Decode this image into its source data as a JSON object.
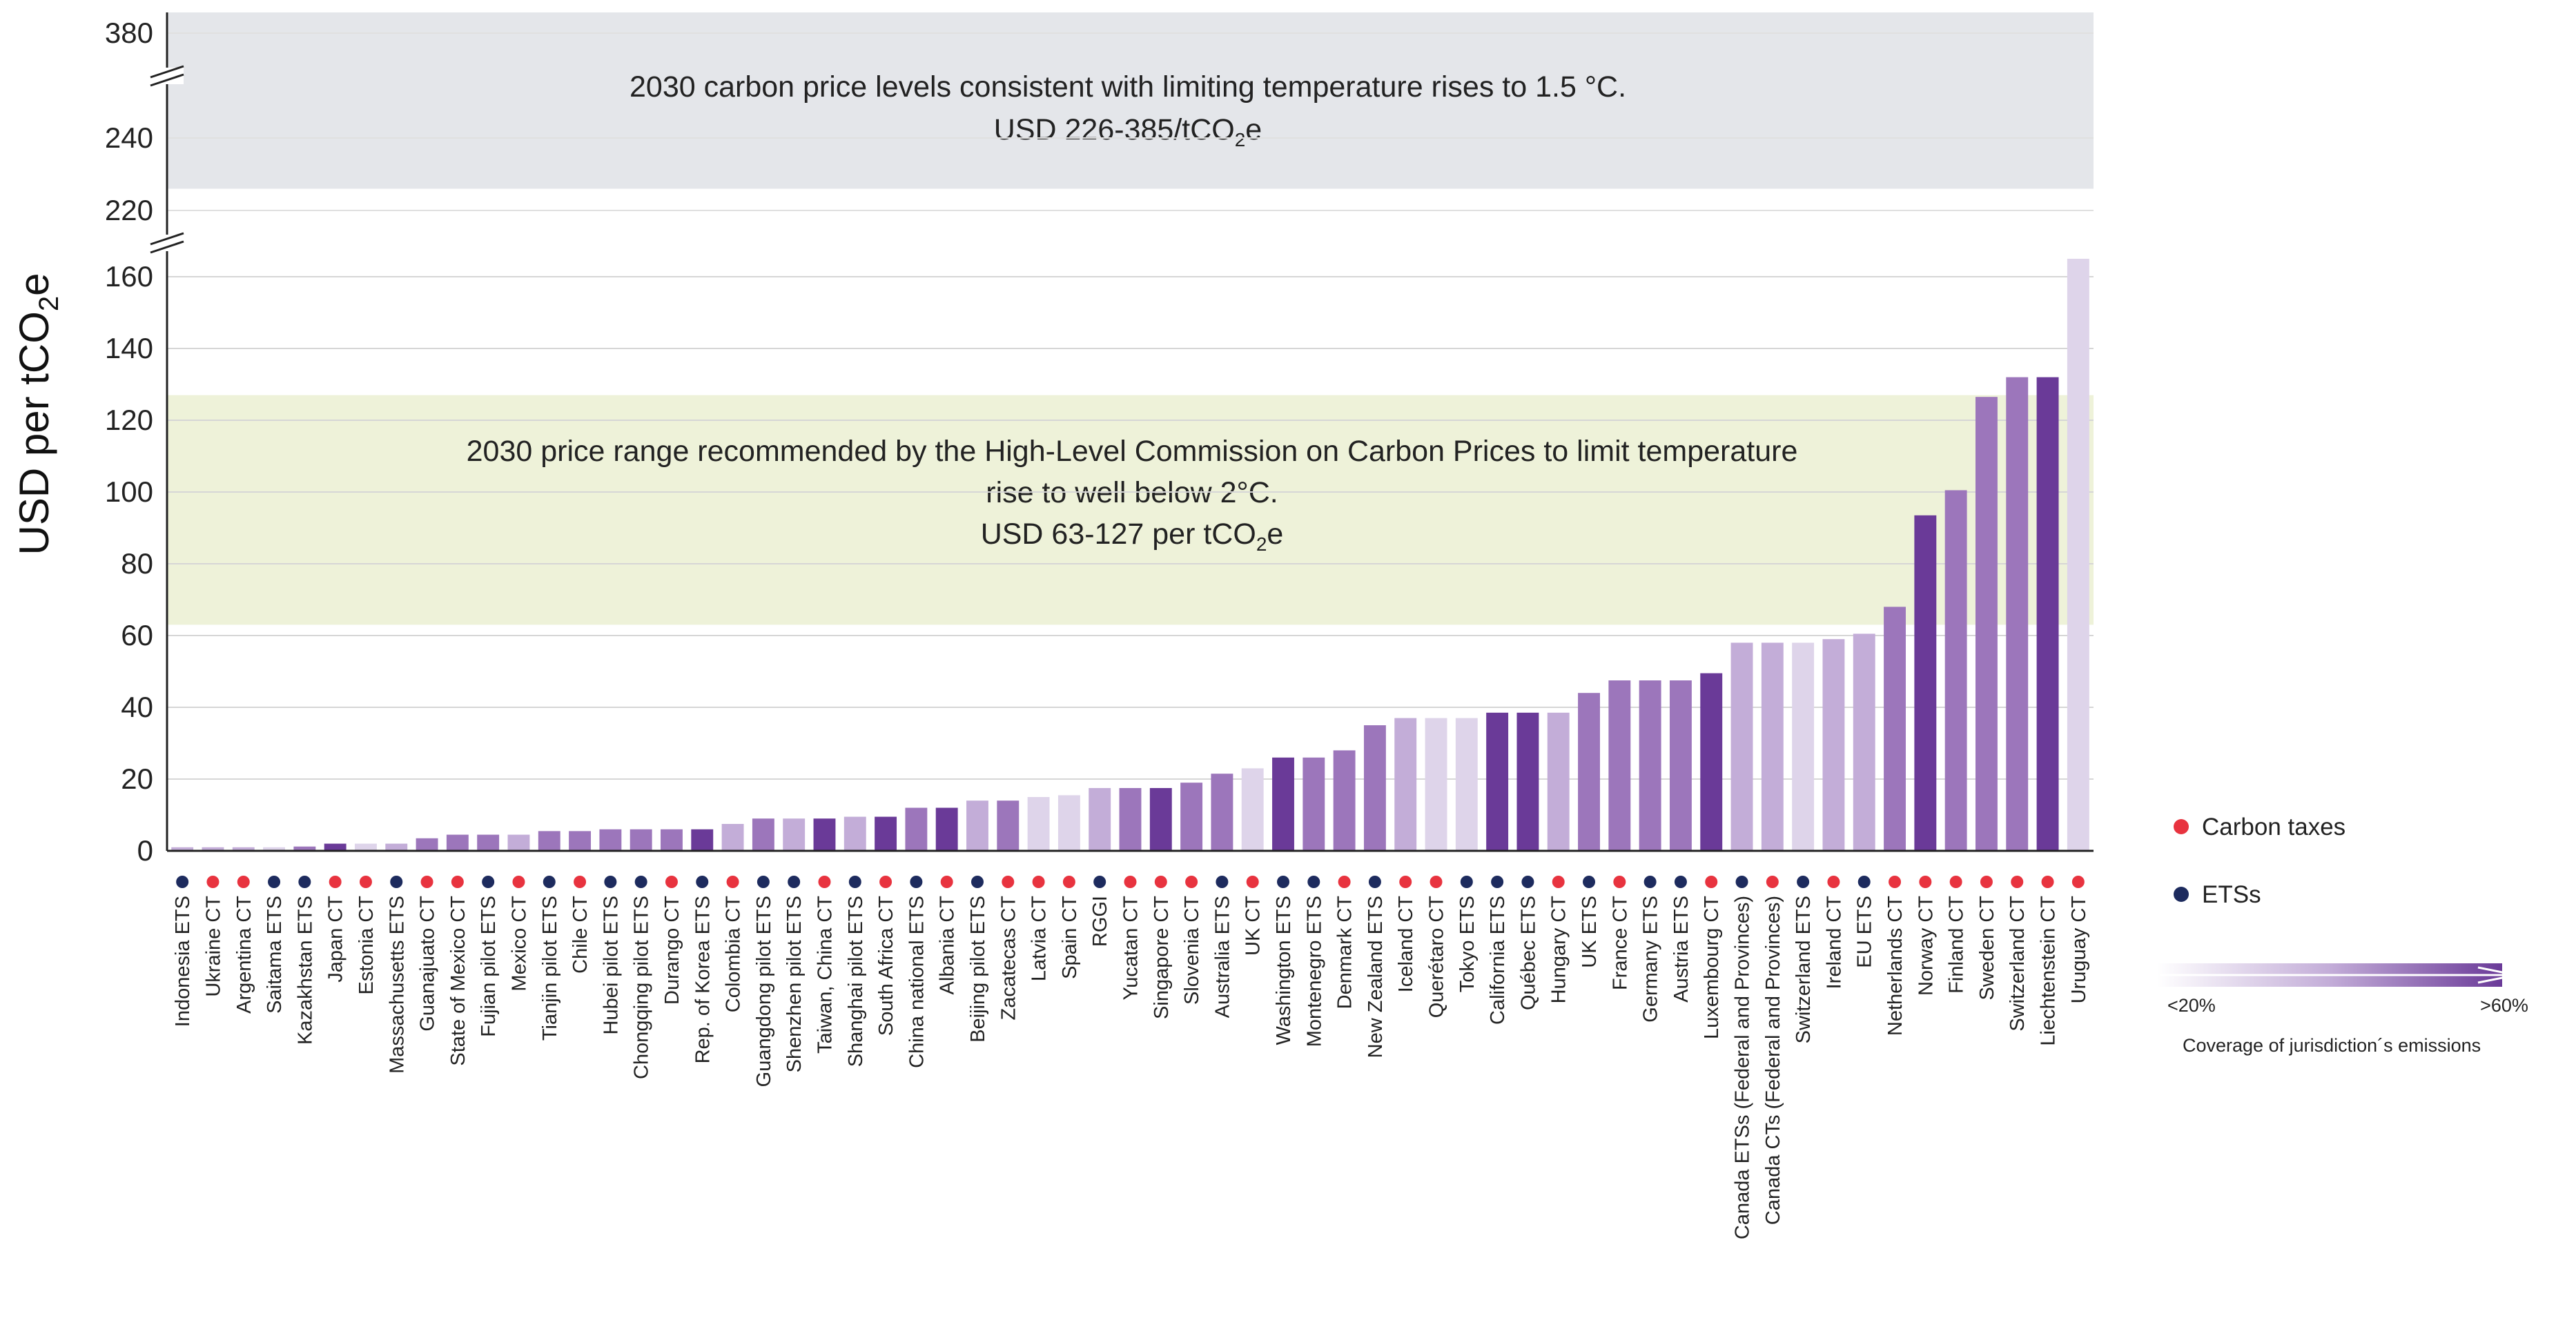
{
  "chart_data": {
    "type": "bar",
    "ylabel": "USD per tCO₂e",
    "y_ticks_lower": [
      0,
      20,
      40,
      60,
      80,
      100,
      120,
      140,
      160
    ],
    "y_ticks_upper": [
      220,
      240,
      380
    ],
    "ylim": [
      0,
      165
    ],
    "bands": [
      {
        "name": "band-1-5c",
        "lines": [
          "2030 carbon price levels consistent with limiting temperature rises to 1.5 °C.",
          "USD 226-385/tCO₂e"
        ],
        "range": [
          226,
          385
        ],
        "color": "#e4e6ea"
      },
      {
        "name": "band-2c",
        "lines": [
          "2030 price range recommended by the High-Level Commission on Carbon Prices to limit temperature",
          "rise to well below 2°C.",
          "USD 63-127 per tCO₂e"
        ],
        "range": [
          63,
          127
        ],
        "color": "#eef2d9"
      }
    ],
    "legend": {
      "types": [
        {
          "key": "CT",
          "label": "Carbon taxes",
          "color": "#e8333f"
        },
        {
          "key": "ETS",
          "label": "ETSs",
          "color": "#1d2b5e"
        }
      ],
      "coverage_low": "<20%",
      "coverage_high": ">60%",
      "coverage_title": "Coverage of jurisdiction´s emissions"
    },
    "coverage_colors": [
      "#ded4ea",
      "#c3add8",
      "#9c76bb",
      "#6a3a98"
    ],
    "bars": [
      {
        "label": "Indonesia ETS",
        "value": 1,
        "type": "ETS",
        "cov": 1
      },
      {
        "label": "Ukraine CT",
        "value": 1,
        "type": "CT",
        "cov": 1
      },
      {
        "label": "Argentina CT",
        "value": 1,
        "type": "CT",
        "cov": 1
      },
      {
        "label": "Saitama ETS",
        "value": 1,
        "type": "ETS",
        "cov": 0
      },
      {
        "label": "Kazakhstan ETS",
        "value": 1.2,
        "type": "ETS",
        "cov": 2
      },
      {
        "label": "Japan CT",
        "value": 2,
        "type": "CT",
        "cov": 3
      },
      {
        "label": "Estonia CT",
        "value": 2,
        "type": "CT",
        "cov": 0
      },
      {
        "label": "Massachusetts ETS",
        "value": 2,
        "type": "ETS",
        "cov": 1
      },
      {
        "label": "Guanajuato CT",
        "value": 3.5,
        "type": "CT",
        "cov": 2
      },
      {
        "label": "State of Mexico CT",
        "value": 4.5,
        "type": "CT",
        "cov": 2
      },
      {
        "label": "Fujian pilot ETS",
        "value": 4.5,
        "type": "ETS",
        "cov": 2
      },
      {
        "label": "Mexico CT",
        "value": 4.5,
        "type": "CT",
        "cov": 1
      },
      {
        "label": "Tianjin pilot ETS",
        "value": 5.5,
        "type": "ETS",
        "cov": 2
      },
      {
        "label": "Chile CT",
        "value": 5.5,
        "type": "CT",
        "cov": 2
      },
      {
        "label": "Hubei pilot ETS",
        "value": 6,
        "type": "ETS",
        "cov": 2
      },
      {
        "label": "Chongqing pilot ETS",
        "value": 6,
        "type": "ETS",
        "cov": 2
      },
      {
        "label": "Durango CT",
        "value": 6,
        "type": "CT",
        "cov": 2
      },
      {
        "label": "Rep. of Korea ETS",
        "value": 6,
        "type": "ETS",
        "cov": 3
      },
      {
        "label": "Colombia CT",
        "value": 7.5,
        "type": "CT",
        "cov": 1
      },
      {
        "label": "Guangdong pilot ETS",
        "value": 9,
        "type": "ETS",
        "cov": 2
      },
      {
        "label": "Shenzhen pilot ETS",
        "value": 9,
        "type": "ETS",
        "cov": 1
      },
      {
        "label": "Taiwan, China CT",
        "value": 9,
        "type": "CT",
        "cov": 3
      },
      {
        "label": "Shanghai pilot ETS",
        "value": 9.5,
        "type": "ETS",
        "cov": 1
      },
      {
        "label": "South Africa CT",
        "value": 9.5,
        "type": "CT",
        "cov": 3
      },
      {
        "label": "China national ETS",
        "value": 12,
        "type": "ETS",
        "cov": 2
      },
      {
        "label": "Albania CT",
        "value": 12,
        "type": "CT",
        "cov": 3
      },
      {
        "label": "Beijing pilot ETS",
        "value": 14,
        "type": "ETS",
        "cov": 1
      },
      {
        "label": "Zacatecas CT",
        "value": 14,
        "type": "CT",
        "cov": 2
      },
      {
        "label": "Latvia CT",
        "value": 15,
        "type": "CT",
        "cov": 0
      },
      {
        "label": "Spain CT",
        "value": 15.5,
        "type": "CT",
        "cov": 0
      },
      {
        "label": "RGGI",
        "value": 17.5,
        "type": "ETS",
        "cov": 1
      },
      {
        "label": "Yucatan CT",
        "value": 17.5,
        "type": "CT",
        "cov": 2
      },
      {
        "label": "Singapore CT",
        "value": 17.5,
        "type": "CT",
        "cov": 3
      },
      {
        "label": "Slovenia CT",
        "value": 19,
        "type": "CT",
        "cov": 2
      },
      {
        "label": "Australia ETS",
        "value": 21.5,
        "type": "ETS",
        "cov": 2
      },
      {
        "label": "UK CT",
        "value": 23,
        "type": "CT",
        "cov": 0
      },
      {
        "label": "Washington ETS",
        "value": 26,
        "type": "ETS",
        "cov": 3
      },
      {
        "label": "Montenegro ETS",
        "value": 26,
        "type": "ETS",
        "cov": 2
      },
      {
        "label": "Denmark CT",
        "value": 28,
        "type": "CT",
        "cov": 2
      },
      {
        "label": "New Zealand ETS",
        "value": 35,
        "type": "ETS",
        "cov": 2
      },
      {
        "label": "Iceland CT",
        "value": 37,
        "type": "CT",
        "cov": 1
      },
      {
        "label": "Querétaro CT",
        "value": 37,
        "type": "CT",
        "cov": 0
      },
      {
        "label": "Tokyo ETS",
        "value": 37,
        "type": "ETS",
        "cov": 0
      },
      {
        "label": "California ETS",
        "value": 38.5,
        "type": "ETS",
        "cov": 3
      },
      {
        "label": "Québec ETS",
        "value": 38.5,
        "type": "ETS",
        "cov": 3
      },
      {
        "label": "Hungary CT",
        "value": 38.5,
        "type": "CT",
        "cov": 1
      },
      {
        "label": "UK ETS",
        "value": 44,
        "type": "ETS",
        "cov": 2
      },
      {
        "label": "France CT",
        "value": 47.5,
        "type": "CT",
        "cov": 2
      },
      {
        "label": "Germany ETS",
        "value": 47.5,
        "type": "ETS",
        "cov": 2
      },
      {
        "label": "Austria ETS",
        "value": 47.5,
        "type": "ETS",
        "cov": 2
      },
      {
        "label": "Luxembourg CT",
        "value": 49.5,
        "type": "CT",
        "cov": 3
      },
      {
        "label": "Canada ETSs (Federal and Provinces)",
        "value": 58,
        "type": "ETS",
        "cov": 1
      },
      {
        "label": "Canada CTs (Federal and Provinces)",
        "value": 58,
        "type": "CT",
        "cov": 1
      },
      {
        "label": "Switzerland ETS",
        "value": 58,
        "type": "ETS",
        "cov": 0
      },
      {
        "label": "Ireland CT",
        "value": 59,
        "type": "CT",
        "cov": 1
      },
      {
        "label": "EU ETS",
        "value": 60.5,
        "type": "ETS",
        "cov": 1
      },
      {
        "label": "Netherlands CT",
        "value": 68,
        "type": "CT",
        "cov": 2
      },
      {
        "label": "Norway CT",
        "value": 93.5,
        "type": "CT",
        "cov": 3
      },
      {
        "label": "Finland CT",
        "value": 100.5,
        "type": "CT",
        "cov": 2
      },
      {
        "label": "Sweden CT",
        "value": 126.5,
        "type": "CT",
        "cov": 2
      },
      {
        "label": "Switzerland CT",
        "value": 132,
        "type": "CT",
        "cov": 2
      },
      {
        "label": "Liechtenstein CT",
        "value": 132,
        "type": "CT",
        "cov": 3
      },
      {
        "label": "Uruguay CT",
        "value": 165,
        "type": "CT",
        "cov": 0
      }
    ]
  }
}
